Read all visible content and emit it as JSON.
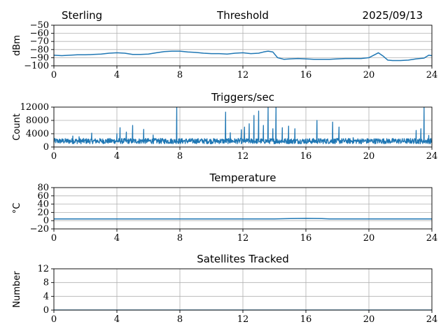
{
  "header": {
    "station": "Sterling",
    "date": "2025/09/13"
  },
  "chart_data": [
    {
      "type": "line",
      "title": "Threshold",
      "xlabel": "",
      "ylabel": "dBm",
      "xlim": [
        0,
        24
      ],
      "ylim": [
        -100,
        -50
      ],
      "xticks": [
        0,
        4,
        8,
        12,
        16,
        20,
        24
      ],
      "xtick_labels": [
        "0",
        "4",
        "8",
        "12",
        "16",
        "20",
        "24"
      ],
      "yticks": [
        -100,
        -90,
        -80,
        -70,
        -60,
        -50
      ],
      "ytick_labels": [
        "−100",
        "−90",
        "−80",
        "−70",
        "−60",
        "−50"
      ],
      "grid": true,
      "color": "#1f77b4",
      "series": [
        {
          "name": "Threshold",
          "x": [
            0,
            0.5,
            1,
            1.5,
            2,
            2.5,
            3,
            3.5,
            4,
            4.5,
            5,
            5.5,
            6,
            6.5,
            7,
            7.5,
            8,
            8.5,
            9,
            9.5,
            10,
            10.5,
            11,
            11.5,
            12,
            12.5,
            13,
            13.3,
            13.6,
            13.9,
            14.2,
            14.6,
            15,
            15.5,
            16,
            16.5,
            17,
            17.5,
            18,
            18.5,
            19,
            19.5,
            20,
            20.3,
            20.6,
            20.9,
            21.2,
            21.5,
            22,
            22.5,
            23,
            23.5,
            23.8,
            24
          ],
          "values": [
            -87,
            -87.5,
            -87,
            -86.5,
            -86.5,
            -86,
            -85.5,
            -84.5,
            -84,
            -84.5,
            -86,
            -86,
            -85.5,
            -84,
            -82.5,
            -82,
            -82,
            -83,
            -83.5,
            -84.5,
            -85,
            -85,
            -85.5,
            -84.5,
            -84,
            -85,
            -84.5,
            -83,
            -82,
            -83,
            -90,
            -92,
            -91.5,
            -91,
            -91.5,
            -92,
            -92,
            -92,
            -91.5,
            -91,
            -91,
            -91,
            -90,
            -87,
            -84,
            -88,
            -93,
            -93.5,
            -93.5,
            -93,
            -91.5,
            -90.5,
            -87,
            -87.5
          ]
        }
      ]
    },
    {
      "type": "line",
      "title": "Triggers/sec",
      "xlabel": "",
      "ylabel": "Count",
      "xlim": [
        0,
        24
      ],
      "ylim": [
        0,
        12000
      ],
      "xticks": [
        0,
        4,
        8,
        12,
        16,
        20,
        24
      ],
      "xtick_labels": [
        "0",
        "4",
        "8",
        "12",
        "16",
        "20",
        "24"
      ],
      "yticks": [
        0,
        4000,
        8000,
        12000
      ],
      "ytick_labels": [
        "0",
        "4000",
        "8000",
        "12000"
      ],
      "grid": true,
      "color": "#1f77b4",
      "series": [
        {
          "name": "Triggers",
          "baseline_band": [
            300,
            3000
          ],
          "spikes": [
            {
              "x": 1.2,
              "y": 3300
            },
            {
              "x": 1.6,
              "y": 3100
            },
            {
              "x": 2.4,
              "y": 4200
            },
            {
              "x": 4.0,
              "y": 4000
            },
            {
              "x": 4.2,
              "y": 5800
            },
            {
              "x": 4.6,
              "y": 4500
            },
            {
              "x": 5.0,
              "y": 6500
            },
            {
              "x": 5.7,
              "y": 5300
            },
            {
              "x": 6.3,
              "y": 3600
            },
            {
              "x": 7.8,
              "y": 12000
            },
            {
              "x": 10.9,
              "y": 10500
            },
            {
              "x": 11.2,
              "y": 4300
            },
            {
              "x": 11.9,
              "y": 5200
            },
            {
              "x": 12.1,
              "y": 6000
            },
            {
              "x": 12.4,
              "y": 7000
            },
            {
              "x": 12.7,
              "y": 9500
            },
            {
              "x": 13.0,
              "y": 10800
            },
            {
              "x": 13.3,
              "y": 6500
            },
            {
              "x": 13.6,
              "y": 12000
            },
            {
              "x": 13.9,
              "y": 5500
            },
            {
              "x": 14.1,
              "y": 12000
            },
            {
              "x": 14.5,
              "y": 5800
            },
            {
              "x": 14.9,
              "y": 6300
            },
            {
              "x": 15.3,
              "y": 5500
            },
            {
              "x": 16.7,
              "y": 8000
            },
            {
              "x": 17.7,
              "y": 7500
            },
            {
              "x": 18.1,
              "y": 6000
            },
            {
              "x": 19.0,
              "y": 2800
            },
            {
              "x": 23.0,
              "y": 5000
            },
            {
              "x": 23.3,
              "y": 5500
            },
            {
              "x": 23.5,
              "y": 12000
            },
            {
              "x": 23.8,
              "y": 3500
            }
          ]
        }
      ]
    },
    {
      "type": "line",
      "title": "Temperature",
      "xlabel": "",
      "ylabel": "°C",
      "xlim": [
        0,
        24
      ],
      "ylim": [
        -20,
        80
      ],
      "xticks": [
        0,
        4,
        8,
        12,
        16,
        20,
        24
      ],
      "xtick_labels": [
        "0",
        "4",
        "8",
        "12",
        "16",
        "20",
        "24"
      ],
      "yticks": [
        -20,
        0,
        20,
        40,
        60,
        80
      ],
      "ytick_labels": [
        "−20",
        "0",
        "20",
        "40",
        "60",
        "80"
      ],
      "grid": true,
      "color": "#1f77b4",
      "series": [
        {
          "name": "Temperature",
          "x": [
            0,
            4,
            8,
            12,
            14,
            15,
            16,
            17,
            17.5,
            20,
            24
          ],
          "values": [
            4,
            4,
            4,
            4,
            4,
            5,
            5.5,
            5,
            4,
            4,
            4
          ]
        }
      ]
    },
    {
      "type": "line",
      "title": "Satellites Tracked",
      "xlabel": "",
      "ylabel": "Number",
      "xlim": [
        0,
        24
      ],
      "ylim": [
        0,
        12
      ],
      "xticks": [
        0,
        4,
        8,
        12,
        16,
        20,
        24
      ],
      "xtick_labels": [
        "0",
        "4",
        "8",
        "12",
        "16",
        "20",
        "24"
      ],
      "yticks": [
        0,
        4,
        8,
        12
      ],
      "ytick_labels": [
        "0",
        "4",
        "8",
        "12"
      ],
      "grid": true,
      "color": "#1f77b4",
      "series": [
        {
          "name": "Satellites",
          "x": [
            0,
            24
          ],
          "values": [
            0,
            0
          ]
        }
      ]
    }
  ]
}
